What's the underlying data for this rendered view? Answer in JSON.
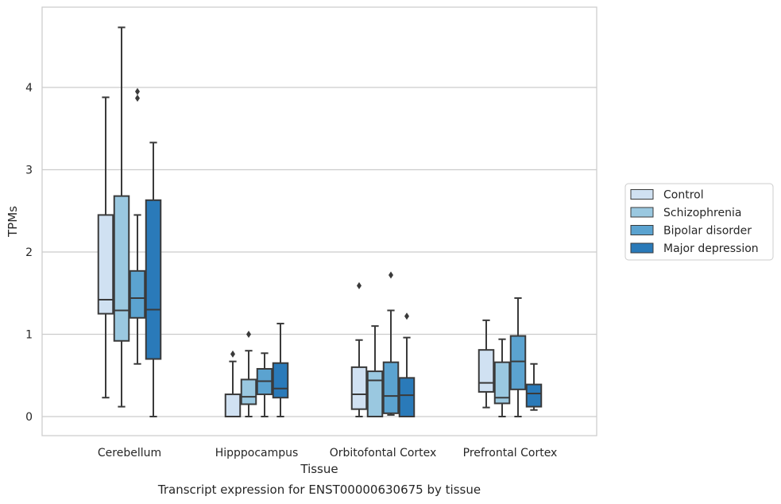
{
  "chart_data": {
    "type": "box",
    "caption": "Transcript expression for ENST00000630675 by tissue",
    "xlabel": "Tissue",
    "ylabel": "TPMs",
    "ylim": [
      -0.23,
      4.98
    ],
    "yticks": [
      0,
      1,
      2,
      3,
      4
    ],
    "grid": "horizontal",
    "legend_position": "right",
    "categories": [
      "Cerebellum",
      "Hipppocampus",
      "Orbitofontal Cortex",
      "Prefrontal Cortex"
    ],
    "series": [
      {
        "name": "Control",
        "color": "#d0e1f2",
        "boxes": [
          {
            "whislo": 0.23,
            "q1": 1.25,
            "med": 1.42,
            "q3": 2.45,
            "whishi": 3.88,
            "fliers": []
          },
          {
            "whislo": 0.0,
            "q1": 0.0,
            "med": 0.0,
            "q3": 0.27,
            "whishi": 0.67,
            "fliers": [
              0.76
            ]
          },
          {
            "whislo": 0.0,
            "q1": 0.09,
            "med": 0.27,
            "q3": 0.6,
            "whishi": 0.93,
            "fliers": [
              1.59
            ]
          },
          {
            "whislo": 0.11,
            "q1": 0.3,
            "med": 0.41,
            "q3": 0.81,
            "whishi": 1.17,
            "fliers": []
          }
        ]
      },
      {
        "name": "Schizophrenia",
        "color": "#9ac8e0",
        "boxes": [
          {
            "whislo": 0.12,
            "q1": 0.92,
            "med": 1.29,
            "q3": 2.68,
            "whishi": 4.73,
            "fliers": []
          },
          {
            "whislo": 0.0,
            "q1": 0.15,
            "med": 0.24,
            "q3": 0.45,
            "whishi": 0.8,
            "fliers": [
              1.0
            ]
          },
          {
            "whislo": 0.0,
            "q1": 0.0,
            "med": 0.44,
            "q3": 0.55,
            "whishi": 1.1,
            "fliers": []
          },
          {
            "whislo": 0.0,
            "q1": 0.16,
            "med": 0.23,
            "q3": 0.66,
            "whishi": 0.94,
            "fliers": []
          }
        ]
      },
      {
        "name": "Bipolar disorder",
        "color": "#5ba3d0",
        "boxes": [
          {
            "whislo": 0.64,
            "q1": 1.2,
            "med": 1.44,
            "q3": 1.77,
            "whishi": 2.45,
            "fliers": [
              3.87,
              3.95
            ]
          },
          {
            "whislo": 0.0,
            "q1": 0.27,
            "med": 0.43,
            "q3": 0.58,
            "whishi": 0.77,
            "fliers": []
          },
          {
            "whislo": 0.02,
            "q1": 0.04,
            "med": 0.25,
            "q3": 0.66,
            "whishi": 1.29,
            "fliers": [
              1.72
            ]
          },
          {
            "whislo": 0.0,
            "q1": 0.33,
            "med": 0.67,
            "q3": 0.98,
            "whishi": 1.44,
            "fliers": []
          }
        ]
      },
      {
        "name": "Major depression",
        "color": "#2a7ab9",
        "boxes": [
          {
            "whislo": 0.0,
            "q1": 0.7,
            "med": 1.3,
            "q3": 2.63,
            "whishi": 3.33,
            "fliers": []
          },
          {
            "whislo": 0.0,
            "q1": 0.23,
            "med": 0.34,
            "q3": 0.65,
            "whishi": 1.13,
            "fliers": []
          },
          {
            "whislo": 0.0,
            "q1": 0.0,
            "med": 0.26,
            "q3": 0.47,
            "whishi": 0.96,
            "fliers": [
              1.22
            ]
          },
          {
            "whislo": 0.08,
            "q1": 0.12,
            "med": 0.28,
            "q3": 0.39,
            "whishi": 0.64,
            "fliers": []
          }
        ]
      }
    ]
  },
  "colors": {
    "edge": "#3a3a3a",
    "grid": "#cccccc",
    "frame": "#cccccc"
  }
}
